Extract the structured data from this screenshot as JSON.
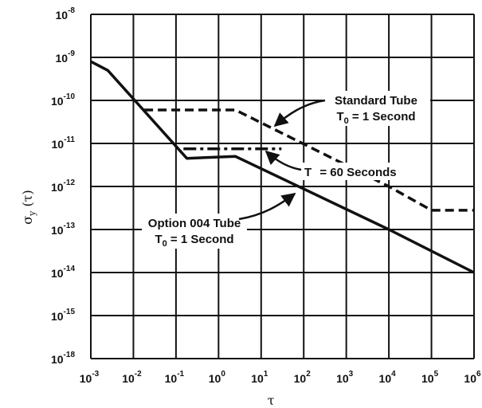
{
  "chart_data": {
    "type": "line",
    "title": "",
    "xlabel": "τ",
    "ylabel": "σy (τ)",
    "x_scale": "log",
    "y_scale": "log",
    "xlim": [
      0.001,
      1000000
    ],
    "y_ticks": [
      {
        "base": "10",
        "exp": "-8"
      },
      {
        "base": "10",
        "exp": "-9"
      },
      {
        "base": "10",
        "exp": "-10"
      },
      {
        "base": "10",
        "exp": "-11"
      },
      {
        "base": "10",
        "exp": "-12"
      },
      {
        "base": "10",
        "exp": "-13"
      },
      {
        "base": "10",
        "exp": "-14"
      },
      {
        "base": "10",
        "exp": "-15"
      },
      {
        "base": "10",
        "exp": "-18"
      }
    ],
    "x_ticks": [
      {
        "base": "10",
        "exp": "-3"
      },
      {
        "base": "10",
        "exp": "-2"
      },
      {
        "base": "10",
        "exp": "-1"
      },
      {
        "base": "10",
        "exp": "0"
      },
      {
        "base": "10",
        "exp": "1"
      },
      {
        "base": "10",
        "exp": "2"
      },
      {
        "base": "10",
        "exp": "3"
      },
      {
        "base": "10",
        "exp": "4"
      },
      {
        "base": "10",
        "exp": "5"
      },
      {
        "base": "10",
        "exp": "6"
      }
    ],
    "grid": true,
    "series": [
      {
        "name": "Option 004 Tube T0 = 1 Second",
        "style": "solid",
        "color": "#111111",
        "x": [
          0.001,
          0.0025,
          0.18,
          2.5,
          10000,
          1000000
        ],
        "y": [
          8e-10,
          5e-10,
          4.5e-12,
          5e-12,
          1e-13,
          1e-14
        ]
      },
      {
        "name": "Standard Tube T0 = 1 Second",
        "style": "dashed",
        "color": "#111111",
        "x": [
          0.018,
          2.5,
          10000,
          100000,
          1000000
        ],
        "y": [
          6e-11,
          6e-11,
          1e-12,
          2.8e-13,
          2.8e-13
        ]
      },
      {
        "name": "T = 60 Seconds",
        "style": "dashdot",
        "color": "#111111",
        "x": [
          0.15,
          30
        ],
        "y": [
          7.5e-12,
          7.5e-12
        ]
      }
    ],
    "annotations": {
      "standard": {
        "line1": "Standard Tube",
        "line2_main": "T",
        "line2_sub": "0",
        "line2_rest": " = 1 Second"
      },
      "t60": {
        "main": "T",
        "rest": " = 60 Seconds"
      },
      "option": {
        "line1": "Option 004 Tube",
        "line2_main": "T",
        "line2_sub": "0",
        "line2_rest": " = 1 Second"
      }
    },
    "ylabel_parts": {
      "sigma": "σ",
      "sub": "y",
      "rest": " (τ)"
    }
  }
}
